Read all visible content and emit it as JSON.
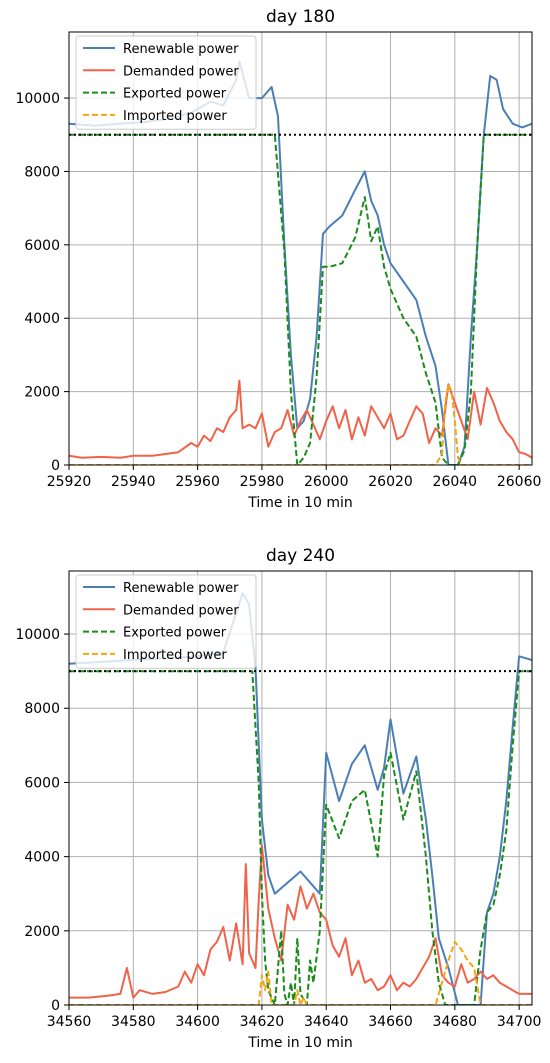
{
  "chart_data": [
    {
      "type": "line",
      "title": "day 180",
      "xlabel": "Time in 10 min",
      "ylabel": "",
      "xlim": [
        25920,
        26064
      ],
      "ylim": [
        0,
        11800
      ],
      "xticks": [
        25920,
        25940,
        25960,
        25980,
        26000,
        26020,
        26040,
        26060
      ],
      "yticks": [
        0,
        2000,
        4000,
        6000,
        8000,
        10000
      ],
      "grid": true,
      "legend_position": "top-left",
      "threshold_line": {
        "y": 9000,
        "style": "dotted",
        "color": "#000000"
      },
      "series": [
        {
          "name": "Renewable power",
          "color": "#4a7fb5",
          "dash": "solid",
          "x": [
            25920,
            25928,
            25936,
            25944,
            25952,
            25958,
            25964,
            25968,
            25972,
            25973,
            25976,
            25980,
            25983,
            25985,
            25987,
            25989,
            25991,
            25993,
            25995,
            25997,
            25999,
            26001,
            26005,
            26009,
            26012,
            26014,
            26016,
            26018,
            26020,
            26024,
            26028,
            26031,
            26034,
            26036,
            26038,
            26041,
            26043,
            26045,
            26047,
            26049,
            26051,
            26053,
            26055,
            26058,
            26061,
            26064
          ],
          "y": [
            9300,
            9250,
            9300,
            9350,
            9450,
            9600,
            9900,
            9800,
            10500,
            11000,
            10000,
            10000,
            10300,
            9500,
            6000,
            3000,
            1000,
            1200,
            1800,
            3500,
            6300,
            6500,
            6800,
            7500,
            8000,
            7200,
            6800,
            6000,
            5500,
            5000,
            4500,
            3500,
            2700,
            1500,
            0,
            0,
            500,
            3500,
            6000,
            9000,
            10600,
            10500,
            9700,
            9300,
            9200,
            9300
          ]
        },
        {
          "name": "Demanded power",
          "color": "#f0634b",
          "dash": "solid",
          "x": [
            25920,
            25924,
            25930,
            25936,
            25940,
            25946,
            25950,
            25954,
            25958,
            25960,
            25962,
            25964,
            25966,
            25968,
            25970,
            25972,
            25973,
            25974,
            25976,
            25978,
            25980,
            25982,
            25984,
            25986,
            25988,
            25990,
            25992,
            25994,
            25996,
            25998,
            26000,
            26002,
            26004,
            26006,
            26008,
            26010,
            26012,
            26014,
            26016,
            26018,
            26020,
            26022,
            26024,
            26026,
            26028,
            26030,
            26032,
            26034,
            26036,
            26038,
            26040,
            26042,
            26044,
            26046,
            26048,
            26050,
            26052,
            26054,
            26056,
            26058,
            26060,
            26062,
            26064
          ],
          "y": [
            250,
            200,
            220,
            200,
            250,
            250,
            300,
            350,
            600,
            500,
            800,
            650,
            1000,
            900,
            1300,
            1500,
            2300,
            1000,
            1100,
            1000,
            1400,
            500,
            900,
            1000,
            1500,
            800,
            1200,
            1500,
            1100,
            700,
            1200,
            1600,
            1000,
            1500,
            700,
            1300,
            800,
            1600,
            1300,
            1000,
            1400,
            700,
            800,
            1200,
            1600,
            1400,
            600,
            1000,
            800,
            2200,
            1700,
            1200,
            700,
            2000,
            1100,
            2100,
            1700,
            1200,
            900,
            700,
            350,
            300,
            200
          ]
        },
        {
          "name": "Exported power",
          "color": "#1a8c1a",
          "dash": "dashed",
          "x": [
            25920,
            25984,
            25987,
            25989,
            25991,
            25993,
            25995,
            25997,
            25999,
            26001,
            26005,
            26009,
            26012,
            26014,
            26016,
            26018,
            26020,
            26024,
            26028,
            26031,
            26034,
            26036,
            26038,
            26041,
            26043,
            26045,
            26047,
            26049,
            26064
          ],
          "y": [
            9000,
            9000,
            5800,
            2000,
            0,
            200,
            600,
            2400,
            5400,
            5400,
            5500,
            6200,
            7300,
            6100,
            6500,
            5400,
            4800,
            4000,
            3500,
            2500,
            1700,
            200,
            0,
            0,
            400,
            2000,
            6000,
            9000,
            9000
          ]
        },
        {
          "name": "Imported power",
          "color": "#f5a511",
          "dash": "dashed",
          "x": [
            25920,
            26034,
            26036,
            26037,
            26038,
            26039,
            26040,
            26041,
            26042,
            26043,
            26064
          ],
          "y": [
            0,
            0,
            300,
            1700,
            2200,
            2000,
            1200,
            200,
            0,
            0,
            0
          ]
        }
      ]
    },
    {
      "type": "line",
      "title": "day 240",
      "xlabel": "Time in 10 min",
      "ylabel": "",
      "xlim": [
        34560,
        34704
      ],
      "ylim": [
        0,
        11700
      ],
      "xticks": [
        34560,
        34580,
        34600,
        34620,
        34640,
        34660,
        34680,
        34700
      ],
      "yticks": [
        0,
        2000,
        4000,
        6000,
        8000,
        10000
      ],
      "grid": true,
      "legend_position": "top-left",
      "threshold_line": {
        "y": 9000,
        "style": "dotted",
        "color": "#000000"
      },
      "series": [
        {
          "name": "Renewable power",
          "color": "#4a7fb5",
          "dash": "solid",
          "x": [
            34560,
            34570,
            34580,
            34590,
            34600,
            34608,
            34614,
            34616,
            34618,
            34620,
            34622,
            34624,
            34628,
            34632,
            34636,
            34638,
            34640,
            34644,
            34648,
            34652,
            34656,
            34658,
            34660,
            34664,
            34668,
            34671,
            34673,
            34675,
            34678,
            34681,
            34684,
            34686,
            34688,
            34690,
            34692,
            34694,
            34696,
            34698,
            34700,
            34704
          ],
          "y": [
            9200,
            9250,
            9300,
            9350,
            9400,
            9500,
            11100,
            10800,
            9100,
            5000,
            3500,
            3000,
            3300,
            3600,
            3200,
            3000,
            6800,
            5500,
            6500,
            7000,
            5800,
            6400,
            7700,
            5700,
            6700,
            5000,
            3500,
            1800,
            1000,
            0,
            0,
            0,
            0,
            2500,
            3000,
            4000,
            5500,
            7500,
            9400,
            9300
          ]
        },
        {
          "name": "Demanded power",
          "color": "#f0634b",
          "dash": "solid",
          "x": [
            34560,
            34566,
            34572,
            34576,
            34578,
            34580,
            34582,
            34586,
            34590,
            34594,
            34596,
            34598,
            34600,
            34602,
            34604,
            34606,
            34608,
            34610,
            34612,
            34614,
            34615,
            34616,
            34618,
            34619,
            34620,
            34622,
            34624,
            34626,
            34628,
            34630,
            34632,
            34634,
            34636,
            34638,
            34640,
            34642,
            34644,
            34646,
            34648,
            34650,
            34652,
            34654,
            34656,
            34658,
            34660,
            34662,
            34664,
            34666,
            34668,
            34670,
            34672,
            34674,
            34676,
            34678,
            34680,
            34682,
            34684,
            34686,
            34688,
            34690,
            34692,
            34694,
            34696,
            34698,
            34700,
            34704
          ],
          "y": [
            200,
            200,
            250,
            300,
            1000,
            200,
            400,
            300,
            350,
            500,
            900,
            600,
            1100,
            800,
            1500,
            1700,
            2100,
            1200,
            2200,
            1100,
            3800,
            1400,
            1000,
            2800,
            4300,
            2600,
            1800,
            1200,
            2700,
            2300,
            3200,
            2600,
            3000,
            2500,
            2300,
            1600,
            1300,
            1800,
            800,
            1200,
            600,
            700,
            400,
            500,
            800,
            400,
            600,
            500,
            700,
            1000,
            1300,
            1800,
            800,
            600,
            500,
            1100,
            600,
            700,
            900,
            700,
            800,
            600,
            500,
            400,
            300,
            300
          ]
        },
        {
          "name": "Exported power",
          "color": "#1a8c1a",
          "dash": "dashed",
          "x": [
            34560,
            34617,
            34619,
            34620,
            34621,
            34622,
            34624,
            34626,
            34627,
            34628,
            34629,
            34630,
            34631,
            34632,
            34634,
            34635,
            34636,
            34638,
            34640,
            34644,
            34648,
            34652,
            34656,
            34658,
            34660,
            34664,
            34668,
            34671,
            34673,
            34675,
            34677,
            34679,
            34681,
            34686,
            34688,
            34690,
            34692,
            34694,
            34696,
            34698,
            34700,
            34704
          ],
          "y": [
            9000,
            9000,
            6000,
            3000,
            1200,
            400,
            0,
            2000,
            300,
            0,
            600,
            0,
            1800,
            300,
            0,
            1200,
            600,
            2000,
            5400,
            4500,
            5500,
            5800,
            4000,
            6200,
            6800,
            5000,
            6300,
            4000,
            2000,
            600,
            0,
            0,
            0,
            0,
            1500,
            2500,
            2700,
            3500,
            4700,
            7000,
            9000,
            9000
          ]
        },
        {
          "name": "Imported power",
          "color": "#f5a511",
          "dash": "dashed",
          "x": [
            34560,
            34618,
            34619,
            34620,
            34621,
            34622,
            34623,
            34624,
            34630,
            34631,
            34632,
            34633,
            34634,
            34674,
            34676,
            34678,
            34680,
            34682,
            34684,
            34686,
            34688,
            34704
          ],
          "y": [
            0,
            0,
            0,
            800,
            400,
            900,
            0,
            0,
            0,
            400,
            0,
            200,
            0,
            0,
            600,
            1200,
            1700,
            1500,
            1200,
            1000,
            0,
            0
          ]
        }
      ]
    }
  ]
}
